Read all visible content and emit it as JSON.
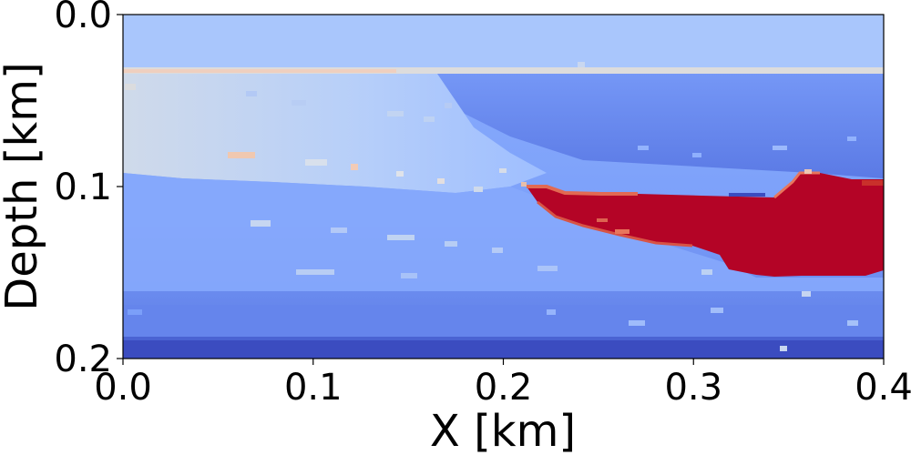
{
  "chart_data": {
    "type": "heatmap",
    "title": "",
    "xlabel": "X [km]",
    "ylabel": "Depth [km]",
    "xlim": [
      0.0,
      0.4
    ],
    "ylim": [
      0.0,
      0.2
    ],
    "y_inverted": true,
    "xticks": [
      {
        "value": 0.0,
        "label": "0.0"
      },
      {
        "value": 0.1,
        "label": "0.1"
      },
      {
        "value": 0.2,
        "label": "0.2"
      },
      {
        "value": 0.3,
        "label": "0.3"
      },
      {
        "value": 0.4,
        "label": "0.4"
      }
    ],
    "yticks": [
      {
        "value": 0.0,
        "label": "0.0"
      },
      {
        "value": 0.1,
        "label": "0.1"
      },
      {
        "value": 0.2,
        "label": "0.2"
      }
    ],
    "colormap": "coolwarm",
    "grid": false,
    "legend": "none",
    "colors": {
      "water": "#a9c6fc",
      "water_bottom": "#dddcdc",
      "sediment_shallow": "#c5d6f2",
      "sediment_mid": "#8caffe",
      "sediment_deep": "#6b8df0",
      "basement": "#3b4cc0",
      "salt_body": "#b40426",
      "salt_edge": "#e26952"
    }
  }
}
